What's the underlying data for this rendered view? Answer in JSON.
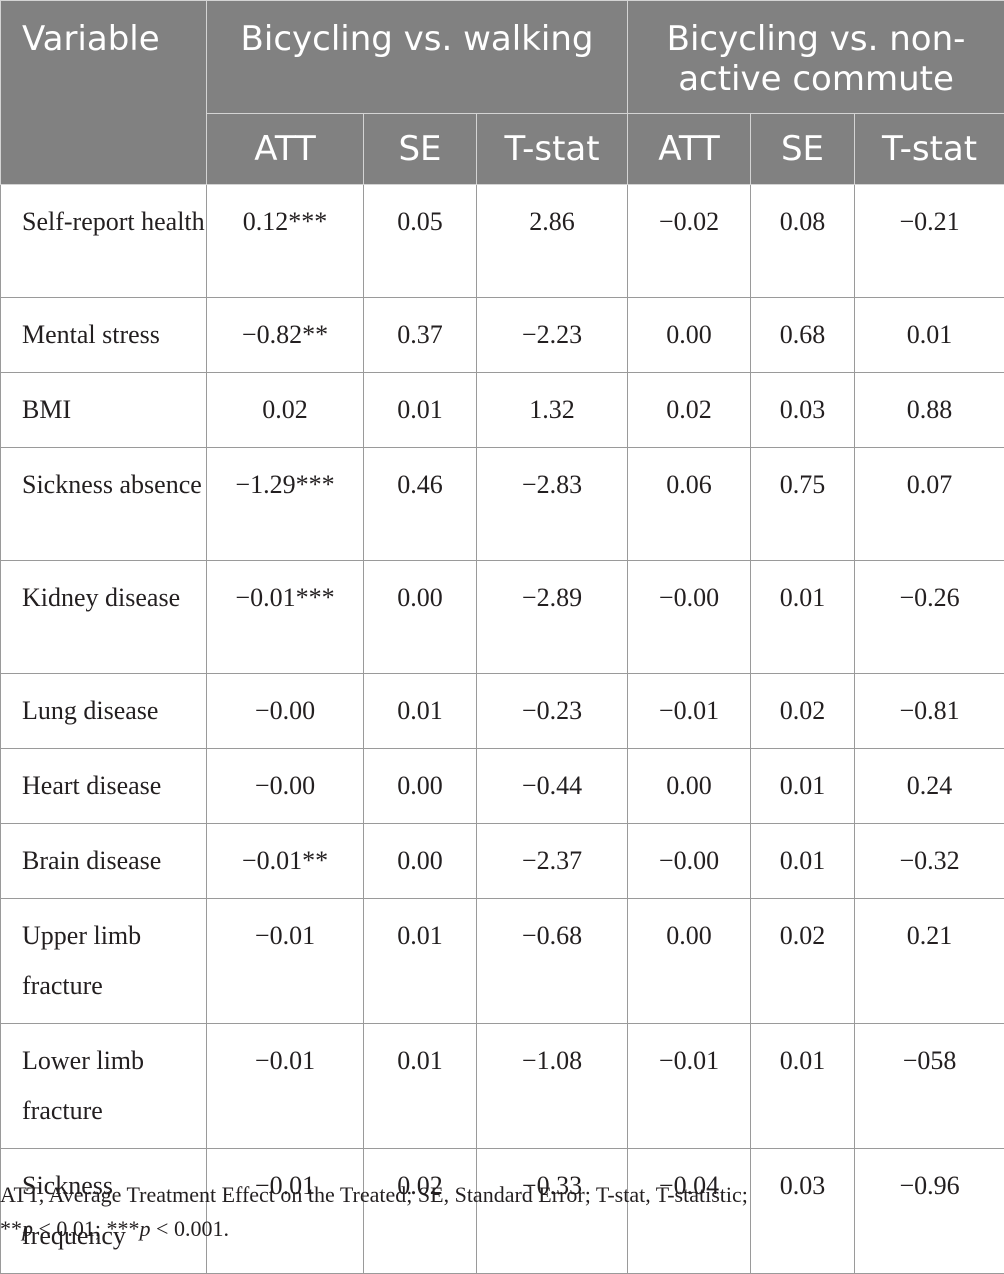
{
  "table": {
    "header": {
      "variable": "Variable",
      "group1": "Bicycling vs. walking",
      "group2": "Bicycling vs. non-active commute",
      "sub": [
        "ATT",
        "SE",
        "T-stat",
        "ATT",
        "SE",
        "T-stat"
      ]
    },
    "rows": [
      {
        "variable": "Self-report health",
        "cells": [
          "0.12***",
          "0.05",
          "2.86",
          "−0.02",
          "0.08",
          "−0.21"
        ]
      },
      {
        "variable": "Mental stress",
        "cells": [
          "−0.82**",
          "0.37",
          "−2.23",
          "0.00",
          "0.68",
          "0.01"
        ]
      },
      {
        "variable": "BMI",
        "cells": [
          "0.02",
          "0.01",
          "1.32",
          "0.02",
          "0.03",
          "0.88"
        ]
      },
      {
        "variable": "Sickness absence",
        "cells": [
          "−1.29***",
          "0.46",
          "−2.83",
          "0.06",
          "0.75",
          "0.07"
        ]
      },
      {
        "variable": "Kidney disease",
        "cells": [
          "−0.01***",
          "0.00",
          "−2.89",
          "−0.00",
          "0.01",
          "−0.26"
        ]
      },
      {
        "variable": "Lung disease",
        "cells": [
          "−0.00",
          "0.01",
          "−0.23",
          "−0.01",
          "0.02",
          "−0.81"
        ]
      },
      {
        "variable": "Heart disease",
        "cells": [
          "−0.00",
          "0.00",
          "−0.44",
          "0.00",
          "0.01",
          "0.24"
        ]
      },
      {
        "variable": "Brain disease",
        "cells": [
          "−0.01**",
          "0.00",
          "−2.37",
          "−0.00",
          "0.01",
          "−0.32"
        ]
      },
      {
        "variable": "Upper limb fracture",
        "cells": [
          "−0.01",
          "0.01",
          "−0.68",
          "0.00",
          "0.02",
          "0.21"
        ]
      },
      {
        "variable": "Lower limb fracture",
        "cells": [
          "−0.01",
          "0.01",
          "−1.08",
          "−0.01",
          "0.01",
          "−058"
        ]
      },
      {
        "variable": "Sickness frequency",
        "cells": [
          "−0.01",
          "0.02",
          "−0.33",
          "−0.04",
          "0.03",
          "−0.96"
        ]
      }
    ]
  },
  "footnote": {
    "line1": "ATT, Average Treatment Effect on the Treated; SE, Standard Error; T-stat, T-statistic;",
    "sig1_stars": "**",
    "sig1_p": "p",
    "sig1_rest": " < 0.01; ",
    "sig2_stars": "***",
    "sig2_p": "p",
    "sig2_rest": " < 0.001."
  },
  "colors": {
    "header_bg": "#818181",
    "header_text": "#ffffff",
    "body_text": "#231f20",
    "grid": "#9a9a9a"
  }
}
